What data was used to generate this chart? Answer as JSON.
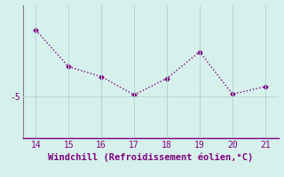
{
  "x": [
    14,
    15,
    16,
    17,
    18,
    19,
    20,
    21
  ],
  "y": [
    -1.0,
    -3.2,
    -3.8,
    -4.9,
    -3.9,
    -2.3,
    -4.85,
    -4.4
  ],
  "line_color": "#800080",
  "marker": "D",
  "marker_size": 2.5,
  "line_width": 1.0,
  "xlabel": "Windchill (Refroidissement éolien,°C)",
  "xlabel_color": "#800080",
  "xlabel_fontsize": 7.5,
  "background_color": "#d6f0ec",
  "grid_color": "#b0d8d4",
  "tick_color": "#800080",
  "axis_color": "#808080",
  "bottom_axis_color": "#800080",
  "yticks": [
    -5
  ],
  "ytick_labels": [
    "-5"
  ],
  "xticks": [
    14,
    15,
    16,
    17,
    18,
    19,
    20,
    21
  ],
  "xlim": [
    13.6,
    21.4
  ],
  "ylim": [
    -7.5,
    0.5
  ]
}
